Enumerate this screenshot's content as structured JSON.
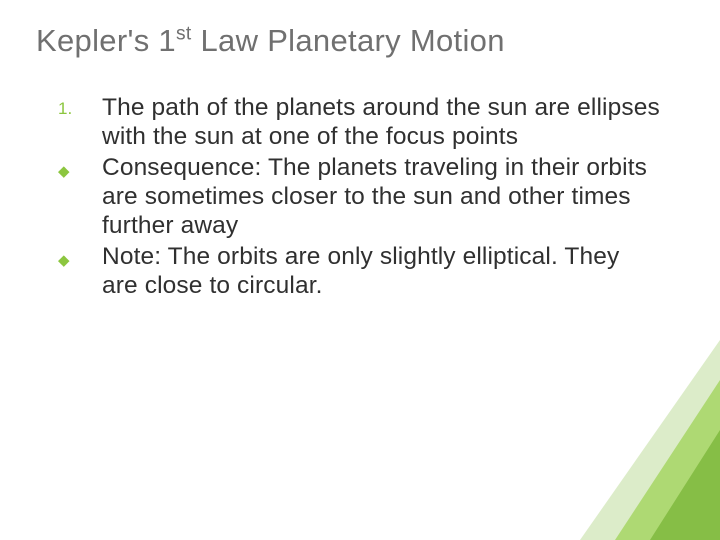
{
  "title_html": "Kepler's 1<sup>st</sup> Law Planetary Motion",
  "items": [
    {
      "marker": "1.",
      "marker_type": "number",
      "text": "The path of the planets around the sun are ellipses with the sun at one of the focus points"
    },
    {
      "marker": "◆",
      "marker_type": "diamond",
      "text": "Consequence: The planets traveling in their orbits are sometimes closer to the sun and other times further away"
    },
    {
      "marker": "◆",
      "marker_type": "diamond",
      "text": "Note: The orbits are only slightly elliptical.  They are close to circular."
    }
  ],
  "colors": {
    "title": "#707070",
    "body_text": "#303030",
    "accent": "#8cc63f",
    "background": "#ffffff",
    "deco_light": "#c5e0a5",
    "deco_mid": "#9fd356",
    "deco_dark": "#7fb93e"
  }
}
